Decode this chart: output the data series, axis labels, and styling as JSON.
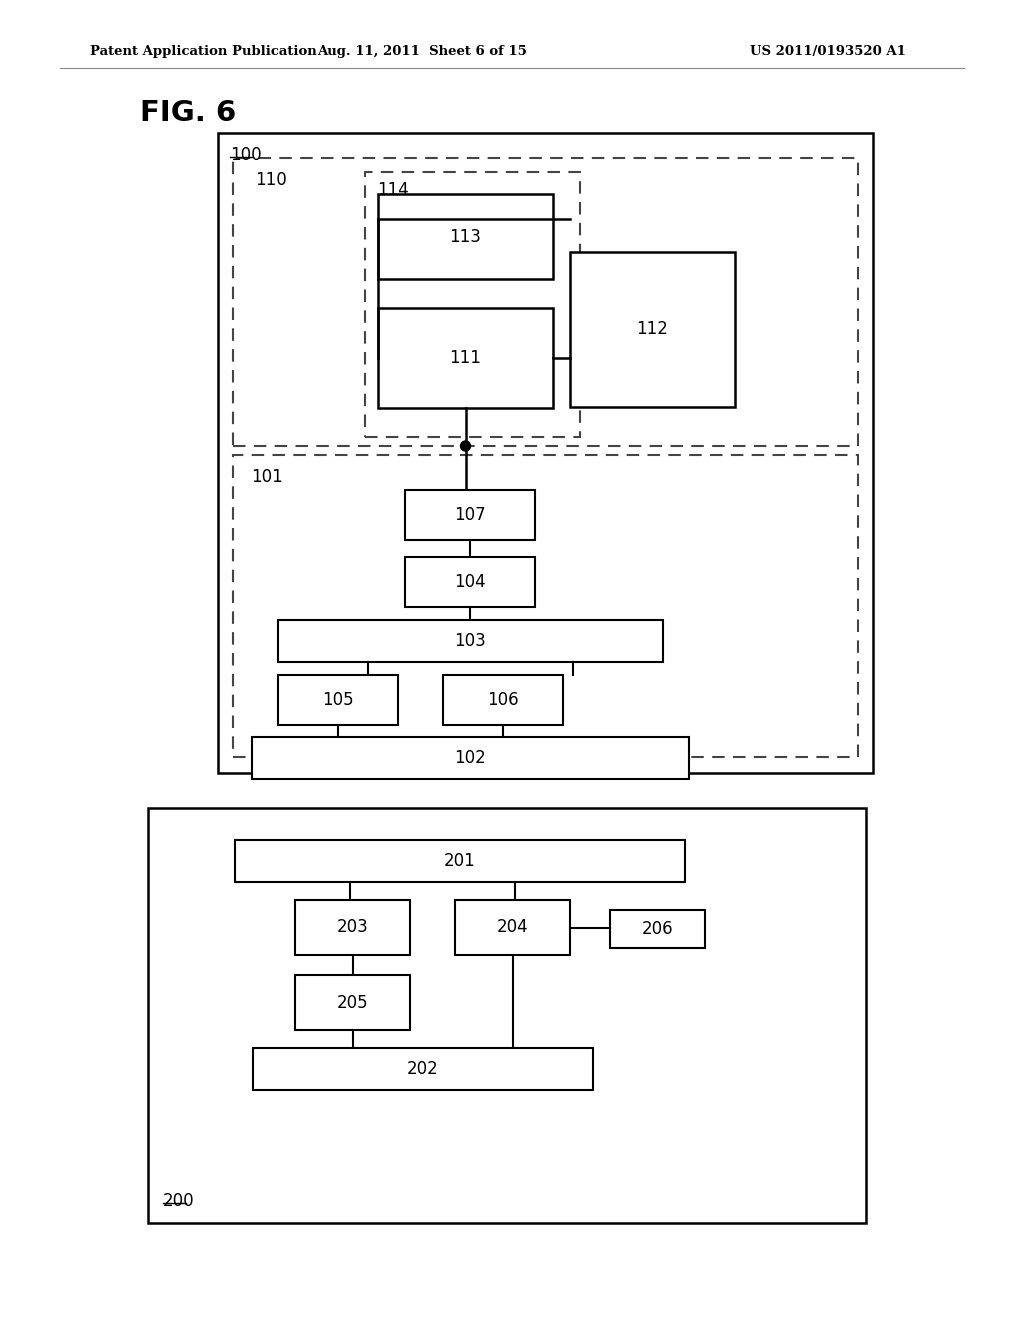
{
  "header_left": "Patent Application Publication",
  "header_mid": "Aug. 11, 2011  Sheet 6 of 15",
  "header_right": "US 2011/0193520 A1",
  "fig_label": "FIG. 6",
  "bg_color": "#ffffff",
  "blocks": {
    "100_label": "100",
    "110_label": "110",
    "101_label": "101",
    "114_label": "114",
    "113_label": "113",
    "112_label": "112",
    "111_label": "111",
    "107_label": "107",
    "104_label": "104",
    "103_label": "103",
    "105_label": "105",
    "106_label": "106",
    "102_label": "102",
    "200_label": "200",
    "201_label": "201",
    "203_label": "203",
    "204_label": "204",
    "206_label": "206",
    "205_label": "205",
    "202_label": "202"
  }
}
